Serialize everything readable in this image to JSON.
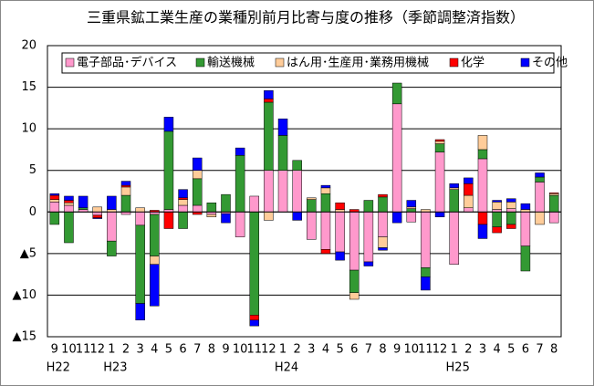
{
  "chart_data": {
    "type": "stacked-bar",
    "title": "三重県鉱工業生産の業種別前月比寄与度の推移（季節調整済指数）",
    "categories": [
      "9",
      "10",
      "11",
      "12",
      "1",
      "2",
      "3",
      "4",
      "5",
      "6",
      "7",
      "8",
      "9",
      "10",
      "11",
      "12",
      "1",
      "2",
      "3",
      "4",
      "5",
      "6",
      "7",
      "8",
      "9",
      "10",
      "11",
      "12",
      "1",
      "2",
      "3",
      "4",
      "5",
      "6",
      "7",
      "8"
    ],
    "category_groups": [
      {
        "label": "H22",
        "start": 0
      },
      {
        "label": "H23",
        "start": 4
      },
      {
        "label": "H24",
        "start": 16
      },
      {
        "label": "H25",
        "start": 28
      }
    ],
    "series": [
      {
        "name": "電子部品･デバイス",
        "color": "#ff99cc",
        "values": [
          1.2,
          0.8,
          0.3,
          -0.4,
          -3.5,
          -0.3,
          -1.6,
          -0.3,
          0.3,
          0.8,
          0.8,
          -0.3,
          -0.2,
          -3.0,
          1.9,
          5.0,
          5.0,
          5.0,
          -3.3,
          -4.5,
          -4.8,
          -7.0,
          -6.0,
          -3.0,
          13.0,
          -1.2,
          -6.7,
          7.2,
          -6.3,
          0.5,
          6.4,
          0.3,
          0.4,
          -4.1,
          3.6,
          -1.3
        ]
      },
      {
        "name": "輸送機械",
        "color": "#339933",
        "values": [
          -1.5,
          -3.7,
          0.2,
          0,
          -1.8,
          2.0,
          -9.4,
          -5.0,
          9.4,
          -2.0,
          3.2,
          1.1,
          2.1,
          6.8,
          -12.4,
          8.2,
          4.2,
          1.2,
          1.5,
          2.2,
          0,
          -2.7,
          1.4,
          1.8,
          2.5,
          0.4,
          -1.1,
          1.0,
          2.7,
          0,
          1.1,
          -1.8,
          -1.5,
          -3.0,
          0.6,
          2.0
        ]
      },
      {
        "name": "はん用･生産用･業務用機械",
        "color": "#ffcc99",
        "values": [
          0.3,
          0.3,
          0,
          0.6,
          0.3,
          1.0,
          0.5,
          -1.0,
          0,
          0.7,
          1.0,
          -0.3,
          0,
          0,
          0,
          -1.0,
          0,
          0,
          0.2,
          0.7,
          0.3,
          -0.8,
          0,
          -1.3,
          0,
          0.2,
          0.3,
          0.3,
          0.2,
          1.5,
          1.7,
          0.9,
          0.8,
          0.3,
          -1.5,
          0.2
        ]
      },
      {
        "name": "化学",
        "color": "#ff0000",
        "values": [
          0.5,
          0.3,
          0,
          -0.3,
          0,
          0.2,
          0,
          0.2,
          -2.0,
          0.2,
          -0.3,
          0,
          0,
          0,
          -0.6,
          0.4,
          0,
          0,
          0,
          -0.5,
          0.8,
          0.3,
          0,
          0.3,
          0,
          0,
          0,
          0.2,
          0,
          1.4,
          -1.5,
          -0.7,
          -0.5,
          0,
          0,
          0.1
        ]
      },
      {
        "name": "その他",
        "color": "#0000ff",
        "values": [
          0.2,
          0.5,
          1.4,
          -0.1,
          1.6,
          0.5,
          -2.0,
          -5.0,
          1.7,
          1.0,
          1.5,
          0,
          -1.1,
          0.9,
          -0.7,
          1.0,
          2.0,
          -1.0,
          0,
          0.3,
          -1.0,
          0,
          -0.5,
          -0.3,
          -1.3,
          0.8,
          -1.6,
          -0.6,
          0.5,
          0.7,
          -1.7,
          0.2,
          0.4,
          0.7,
          0.5,
          0
        ]
      }
    ],
    "ylim": [
      -15,
      20
    ],
    "yticks": [
      {
        "value": -15,
        "label": "▲15"
      },
      {
        "value": -10,
        "label": "▲10"
      },
      {
        "value": -5,
        "label": "▲5"
      },
      0,
      5,
      10,
      15,
      20
    ],
    "grid": true,
    "legend": "top"
  }
}
